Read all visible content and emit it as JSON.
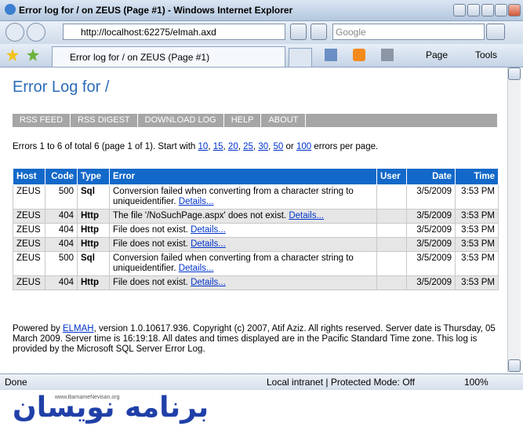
{
  "window": {
    "title": "Error log for / on ZEUS (Page #1) - Windows Internet Explorer",
    "url": "http://localhost:62275/elmah.axd",
    "search_placeholder": "Google",
    "tab_title": "Error log for / on ZEUS (Page #1)",
    "toolbar": [
      "Page",
      "Tools"
    ],
    "status": "Done",
    "zone": "Local intranet | Protected Mode: Off",
    "zoom": "100%"
  },
  "page": {
    "heading": "Error Log for /",
    "menu": [
      "RSS FEED",
      "RSS DIGEST",
      "DOWNLOAD LOG",
      "HELP",
      "ABOUT"
    ],
    "summary": {
      "prefix": "Errors 1 to 6 of total 6 (page 1 of 1). Start with",
      "page_sizes": [
        "10",
        "15",
        "20",
        "25",
        "30",
        "50"
      ],
      "separator": ",",
      "conjunction": "or",
      "last_size": "100",
      "suffix": "errors per page."
    },
    "table": {
      "columns": [
        "Host",
        "Code",
        "Type",
        "Error",
        "User",
        "Date",
        "Time"
      ],
      "rows": [
        {
          "host": "ZEUS",
          "code": 500,
          "type": "Sql",
          "message": "Conversion failed when converting from a character string to uniqueidentifier.",
          "link": "Details...",
          "date": "3/5/2009",
          "time": "3:53 PM"
        },
        {
          "host": "ZEUS",
          "code": 404,
          "type": "Http",
          "message": "The file '/NoSuchPage.aspx' does not exist.",
          "link": "Details...",
          "date": "3/5/2009",
          "time": "3:53 PM"
        },
        {
          "host": "ZEUS",
          "code": 404,
          "type": "Http",
          "message": "File does not exist.",
          "link": "Details...",
          "date": "3/5/2009",
          "time": "3:53 PM"
        },
        {
          "host": "ZEUS",
          "code": 404,
          "type": "Http",
          "message": "File does not exist.",
          "link": "Details...",
          "date": "3/5/2009",
          "time": "3:53 PM"
        },
        {
          "host": "ZEUS",
          "code": 500,
          "type": "Sql",
          "message": "Conversion failed when converting from a character string to uniqueidentifier.",
          "link": "Details...",
          "date": "3/5/2009",
          "time": "3:53 PM"
        },
        {
          "host": "ZEUS",
          "code": 404,
          "type": "Http",
          "message": "File does not exist.",
          "link": "Details...",
          "date": "3/5/2009",
          "time": "3:53 PM"
        }
      ]
    },
    "footer": {
      "prefix": "Powered by",
      "link": "ELMAH",
      "text": ", version 1.0.10617.936. Copyright (c) 2007, Atif Aziz. All rights reserved. Server date is Thursday, 05 March 2009. Server time is 16:19:18. All dates and times displayed are in the Pacific Standard Time zone. This log is provided by the Microsoft SQL Server Error Log."
    }
  },
  "watermark": {
    "url": "www.BarnameNevisan.org",
    "logo": "برنامه نویسان"
  }
}
